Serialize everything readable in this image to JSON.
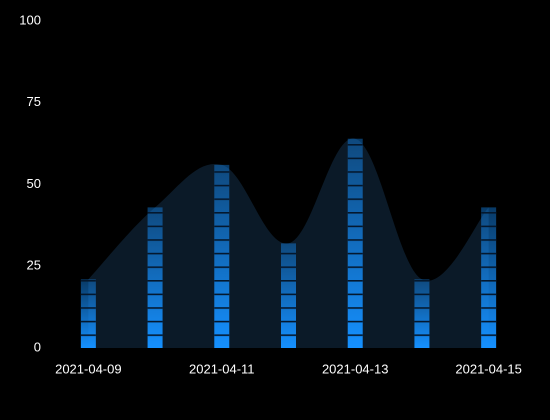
{
  "chart_data": {
    "type": "bar",
    "categories": [
      "2021-04-09",
      null,
      "2021-04-11",
      null,
      "2021-04-13",
      null,
      "2021-04-15"
    ],
    "values": [
      21,
      43,
      56,
      32,
      64,
      21,
      43
    ],
    "color": "#1590ff",
    "area_color": "#0b1a28",
    "ylim": [
      0,
      100
    ],
    "yticks": [
      0,
      25,
      50,
      75,
      100
    ],
    "grid": false
  }
}
